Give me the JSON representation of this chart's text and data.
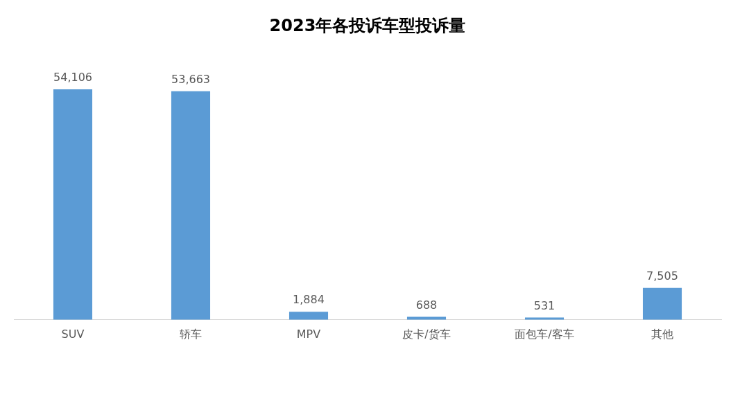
{
  "chart_data": {
    "type": "bar",
    "title": "2023年各投诉车型投诉量",
    "categories": [
      "SUV",
      "轿车",
      "MPV",
      "皮卡/货车",
      "面包车/客车",
      "其他"
    ],
    "values": [
      54106,
      53663,
      1884,
      688,
      531,
      7505
    ],
    "value_labels": [
      "54,106",
      "53,663",
      "1,884",
      "688",
      "531",
      "7,505"
    ],
    "color": "#5b9bd5"
  }
}
